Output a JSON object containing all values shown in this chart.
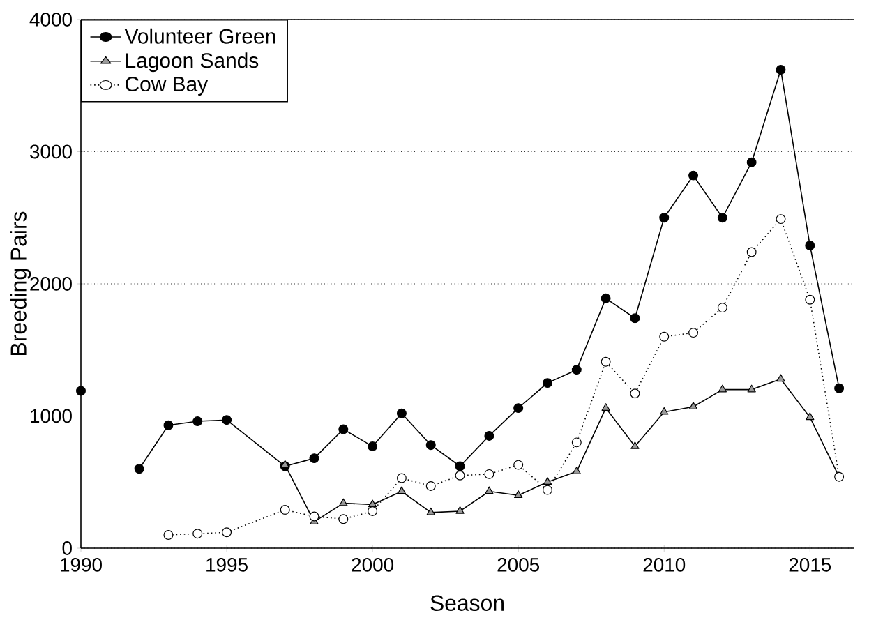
{
  "chart_data": {
    "type": "line",
    "xlabel": "Season",
    "ylabel": "Breeding Pairs",
    "xlim": [
      1990,
      2016.5
    ],
    "ylim": [
      0,
      4000
    ],
    "xticks": [
      1990,
      1995,
      2000,
      2005,
      2010,
      2015
    ],
    "yticks": [
      0,
      1000,
      2000,
      3000,
      4000
    ],
    "grid": "y",
    "legend": "top left",
    "series": [
      {
        "name": "Volunteer Green",
        "color": "#000000",
        "marker": "circle",
        "line_style": "solid",
        "x": [
          1990,
          1991,
          1992,
          1993,
          1994,
          1995,
          1997,
          1998,
          1999,
          2000,
          2001,
          2002,
          2003,
          2004,
          2005,
          2006,
          2007,
          2008,
          2009,
          2010,
          2011,
          2012,
          2013,
          2014,
          2015,
          2016
        ],
        "values": [
          1190,
          null,
          600,
          930,
          960,
          970,
          620,
          680,
          900,
          770,
          1020,
          780,
          620,
          850,
          1060,
          1250,
          1350,
          1890,
          1740,
          2500,
          2820,
          2500,
          2920,
          3620,
          2290,
          1210
        ]
      },
      {
        "name": "Lagoon Sands",
        "color": "#999999",
        "marker": "triangle",
        "line_style": "solid",
        "x": [
          1997,
          1998,
          1999,
          2000,
          2001,
          2002,
          2003,
          2004,
          2005,
          2006,
          2007,
          2008,
          2009,
          2010,
          2011,
          2012,
          2013,
          2014,
          2015,
          2016
        ],
        "values": [
          630,
          200,
          340,
          330,
          430,
          270,
          280,
          430,
          400,
          500,
          580,
          1060,
          770,
          1030,
          1070,
          1200,
          1200,
          1280,
          990,
          540
        ]
      },
      {
        "name": "Cow Bay",
        "color": "#ffffff",
        "marker": "circle",
        "line_style": "dotted",
        "x": [
          1993,
          1994,
          1995,
          1997,
          1998,
          1999,
          2000,
          2001,
          2002,
          2003,
          2004,
          2005,
          2006,
          2007,
          2008,
          2009,
          2010,
          2011,
          2012,
          2013,
          2014,
          2015,
          2016
        ],
        "values": [
          100,
          110,
          120,
          290,
          240,
          220,
          280,
          530,
          470,
          550,
          560,
          630,
          440,
          800,
          1410,
          1170,
          1600,
          1630,
          1820,
          2240,
          2490,
          1880,
          540
        ]
      }
    ]
  }
}
